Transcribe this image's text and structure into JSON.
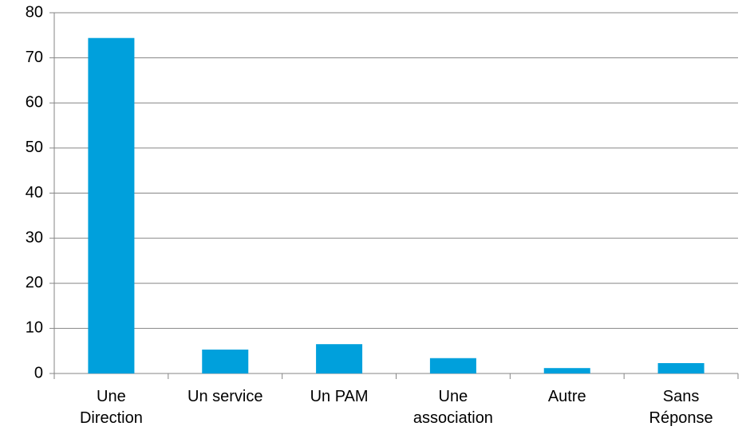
{
  "chart_data": {
    "type": "bar",
    "categories": [
      "Une\nDirection",
      "Un service",
      "Un PAM",
      "Une\nassociation",
      "Autre",
      "Sans\nRéponse"
    ],
    "values": [
      74.4,
      5.3,
      6.5,
      3.4,
      1.2,
      2.3
    ],
    "color": "#00a0dc",
    "ylim": [
      0,
      80
    ],
    "yticks": [
      0,
      10,
      20,
      30,
      40,
      50,
      60,
      70,
      80
    ],
    "grid": true
  }
}
